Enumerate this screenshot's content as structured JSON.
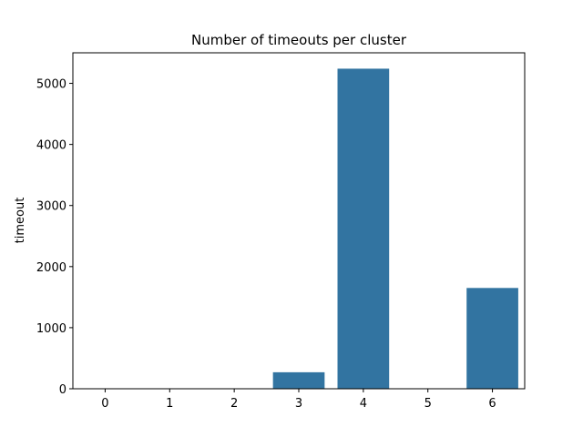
{
  "chart_data": {
    "type": "bar",
    "title": "Number of timeouts per cluster",
    "xlabel": "",
    "ylabel": "timeout",
    "categories": [
      "0",
      "1",
      "2",
      "3",
      "4",
      "5",
      "6"
    ],
    "values": [
      0,
      0,
      0,
      270,
      5240,
      0,
      1650
    ],
    "ylim": [
      0,
      5500
    ],
    "yticks": [
      0,
      1000,
      2000,
      3000,
      4000,
      5000
    ],
    "grid": false,
    "bar_color": "#3274a1"
  }
}
